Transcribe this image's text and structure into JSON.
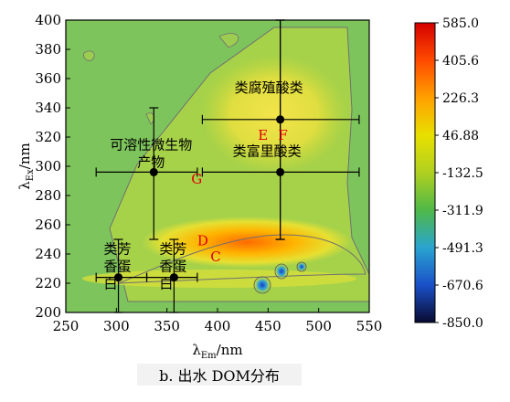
{
  "chart_data": {
    "type": "heatmap",
    "title": "",
    "caption": "b. 出水 DOM分布",
    "xlabel": "λEm/nm",
    "ylabel": "λEx/nm",
    "xlabel_parts": {
      "main": "λ",
      "sub": "Em",
      "unit": "/nm"
    },
    "ylabel_parts": {
      "main": "λ",
      "sub": "Ex",
      "unit": "/nm"
    },
    "xlim": [
      250,
      550
    ],
    "ylim": [
      200,
      400
    ],
    "xticks": [
      "250",
      "300",
      "350",
      "400",
      "450",
      "500",
      "550"
    ],
    "yticks": [
      "200",
      "220",
      "240",
      "260",
      "280",
      "300",
      "320",
      "340",
      "360",
      "380",
      "400"
    ],
    "colorbar": {
      "min": -850.0,
      "max": 585.0,
      "labels": [
        "585.0",
        "405.6",
        "226.3",
        "46.88",
        "-132.5",
        "-311.9",
        "-491.3",
        "-670.6",
        "-850.0"
      ],
      "colors": [
        "#d40000",
        "#ff4a00",
        "#ffa000",
        "#e8e000",
        "#b0d020",
        "#4fb848",
        "#2aa4d0",
        "#1a50c8",
        "#0a0a30"
      ]
    },
    "regions": [
      {
        "label": "类腐殖酸类",
        "letters": [
          "E",
          "F"
        ],
        "x": 462,
        "y": 332,
        "x_range": [
          385,
          540
        ],
        "y_range": [
          250,
          400
        ]
      },
      {
        "label": "类富里酸类",
        "letters": [],
        "x": 462,
        "y": 296,
        "x_range": [
          385,
          540
        ],
        "y_range": [
          250,
          400
        ]
      },
      {
        "label": "可溶性微生物产物",
        "letters": [
          "G"
        ],
        "x": 337,
        "y": 296,
        "x_range": [
          280,
          380
        ],
        "y_range": [
          250,
          340
        ]
      },
      {
        "label": "类芳香蛋白",
        "letters": [],
        "x": 302,
        "y": 224,
        "x_range": [
          280,
          330
        ],
        "y_range": [
          200,
          250
        ]
      },
      {
        "label": "类芳香蛋白",
        "letters": [
          "D",
          "C"
        ],
        "x": 357,
        "y": 224,
        "x_range": [
          330,
          380
        ],
        "y_range": [
          200,
          250
        ]
      }
    ],
    "letter_positions": {
      "E": {
        "x": 440,
        "y": 318
      },
      "F": {
        "x": 460,
        "y": 318
      },
      "G": {
        "x": 374,
        "y": 288
      },
      "D": {
        "x": 380,
        "y": 246
      },
      "C": {
        "x": 393,
        "y": 235
      }
    }
  }
}
